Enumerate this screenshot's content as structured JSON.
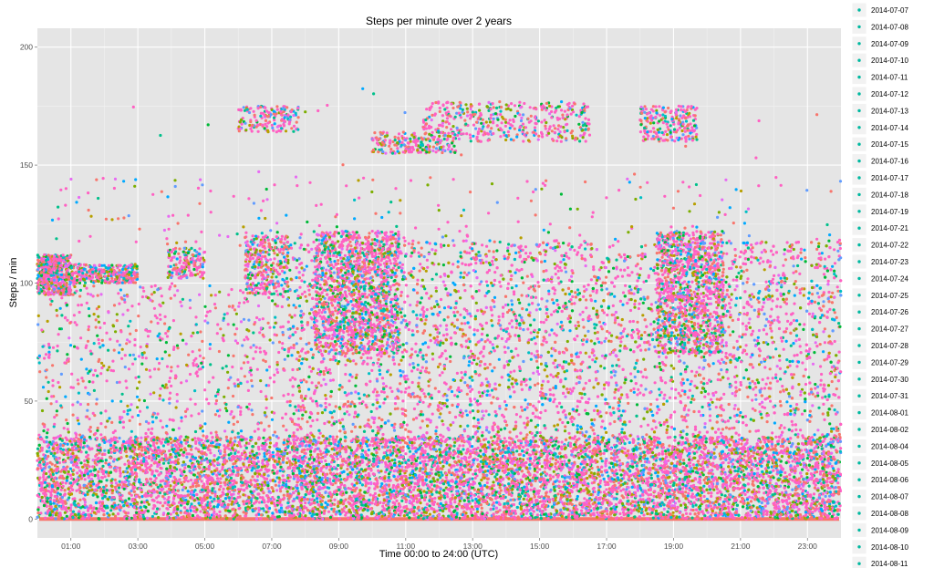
{
  "chart_data": {
    "type": "scatter",
    "title": "Steps per minute over 2 years",
    "xlabel": "Time 00:00 to 24:00 (UTC)",
    "ylabel": "Steps / min",
    "xlim": [
      0,
      24
    ],
    "ylim": [
      -8,
      208
    ],
    "x_ticks": [
      {
        "value": 1,
        "label": "01:00"
      },
      {
        "value": 3,
        "label": "03:00"
      },
      {
        "value": 5,
        "label": "05:00"
      },
      {
        "value": 7,
        "label": "07:00"
      },
      {
        "value": 9,
        "label": "09:00"
      },
      {
        "value": 11,
        "label": "11:00"
      },
      {
        "value": 13,
        "label": "13:00"
      },
      {
        "value": 15,
        "label": "15:00"
      },
      {
        "value": 17,
        "label": "17:00"
      },
      {
        "value": 19,
        "label": "19:00"
      },
      {
        "value": 21,
        "label": "21:00"
      },
      {
        "value": 23,
        "label": "23:00"
      }
    ],
    "y_ticks": [
      {
        "value": 0,
        "label": "0"
      },
      {
        "value": 50,
        "label": "50"
      },
      {
        "value": 100,
        "label": "100"
      },
      {
        "value": 150,
        "label": "150"
      },
      {
        "value": 200,
        "label": "200"
      }
    ],
    "grid": true,
    "legend_position": "right",
    "legend_entries": [
      "2014-07-07",
      "2014-07-08",
      "2014-07-09",
      "2014-07-10",
      "2014-07-11",
      "2014-07-12",
      "2014-07-13",
      "2014-07-14",
      "2014-07-15",
      "2014-07-16",
      "2014-07-17",
      "2014-07-18",
      "2014-07-19",
      "2014-07-21",
      "2014-07-22",
      "2014-07-23",
      "2014-07-24",
      "2014-07-25",
      "2014-07-26",
      "2014-07-27",
      "2014-07-28",
      "2014-07-29",
      "2014-07-30",
      "2014-07-31",
      "2014-08-01",
      "2014-08-02",
      "2014-08-04",
      "2014-08-05",
      "2014-08-06",
      "2014-08-07",
      "2014-08-08",
      "2014-08-09",
      "2014-08-10",
      "2014-08-11"
    ],
    "legend_color": "#00B8A0",
    "palette": [
      "#F8766D",
      "#FF61C3",
      "#E76BF3",
      "#00BFC4",
      "#00A9FF",
      "#619CFF",
      "#00BA38",
      "#7CAE00",
      "#B79F00",
      "#00C08B"
    ],
    "zero_line_color": "#F8766D",
    "clusters": [
      {
        "x": [
          0,
          24
        ],
        "y": [
          0,
          35
        ],
        "weight": 160
      },
      {
        "x": [
          7.5,
          24
        ],
        "y": [
          0,
          118
        ],
        "weight": 130
      },
      {
        "x": [
          8.3,
          10.8
        ],
        "y": [
          70,
          122
        ],
        "weight": 25
      },
      {
        "x": [
          18.5,
          20.5
        ],
        "y": [
          70,
          122
        ],
        "weight": 20
      },
      {
        "x": [
          0,
          1
        ],
        "y": [
          95,
          112
        ],
        "weight": 10
      },
      {
        "x": [
          1,
          3
        ],
        "y": [
          100,
          108
        ],
        "weight": 6
      },
      {
        "x": [
          0,
          7.5
        ],
        "y": [
          0,
          100
        ],
        "weight": 22
      },
      {
        "x": [
          6.2,
          7.5
        ],
        "y": [
          95,
          120
        ],
        "weight": 6
      },
      {
        "x": [
          3.9,
          5.0
        ],
        "y": [
          102,
          115
        ],
        "weight": 3
      },
      {
        "x": [
          11.5,
          16.5
        ],
        "y": [
          160,
          177
        ],
        "weight": 8
      },
      {
        "x": [
          10.0,
          12.5
        ],
        "y": [
          155,
          164
        ],
        "weight": 4
      },
      {
        "x": [
          6.0,
          7.8
        ],
        "y": [
          164,
          175
        ],
        "weight": 3
      },
      {
        "x": [
          18.0,
          19.7
        ],
        "y": [
          160,
          175
        ],
        "weight": 4
      },
      {
        "x": [
          0,
          24
        ],
        "y": [
          115,
          145
        ],
        "weight": 4
      },
      {
        "x": [
          0,
          24
        ],
        "y": [
          140,
          195
        ],
        "weight": 0.4
      }
    ],
    "point_count": 22000
  }
}
